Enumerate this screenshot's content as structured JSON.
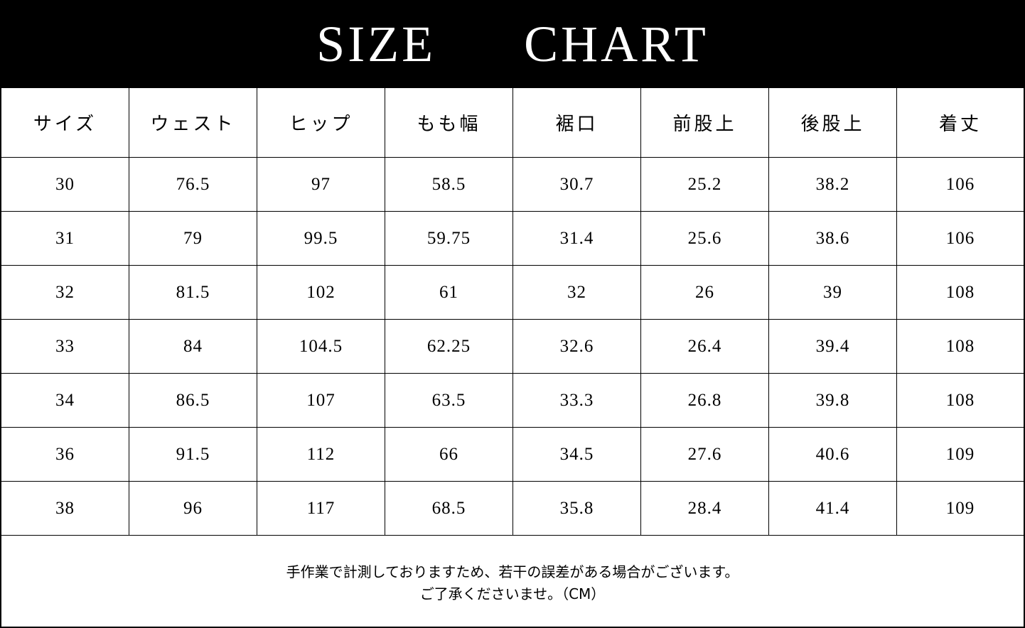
{
  "title": "SIZE  CHART",
  "chart_data": {
    "type": "table",
    "title": "SIZE  CHART",
    "columns": [
      "サイズ",
      "ウェスト",
      "ヒップ",
      "もも幅",
      "裾口",
      "前股上",
      "後股上",
      "着丈"
    ],
    "rows": [
      [
        "30",
        "76.5",
        "97",
        "58.5",
        "30.7",
        "25.2",
        "38.2",
        "106"
      ],
      [
        "31",
        "79",
        "99.5",
        "59.75",
        "31.4",
        "25.6",
        "38.6",
        "106"
      ],
      [
        "32",
        "81.5",
        "102",
        "61",
        "32",
        "26",
        "39",
        "108"
      ],
      [
        "33",
        "84",
        "104.5",
        "62.25",
        "32.6",
        "26.4",
        "39.4",
        "108"
      ],
      [
        "34",
        "86.5",
        "107",
        "63.5",
        "33.3",
        "26.8",
        "39.8",
        "108"
      ],
      [
        "36",
        "91.5",
        "112",
        "66",
        "34.5",
        "27.6",
        "40.6",
        "109"
      ],
      [
        "38",
        "96",
        "117",
        "68.5",
        "35.8",
        "28.4",
        "41.4",
        "109"
      ]
    ]
  },
  "footer": {
    "line1": "手作業で計測しておりますため、若干の誤差がある場合がございます。",
    "line2": "ご了承くださいませ。（CM）"
  },
  "colors": {
    "banner_bg": "#000000",
    "banner_text": "#ffffff",
    "grid": "#000000"
  }
}
